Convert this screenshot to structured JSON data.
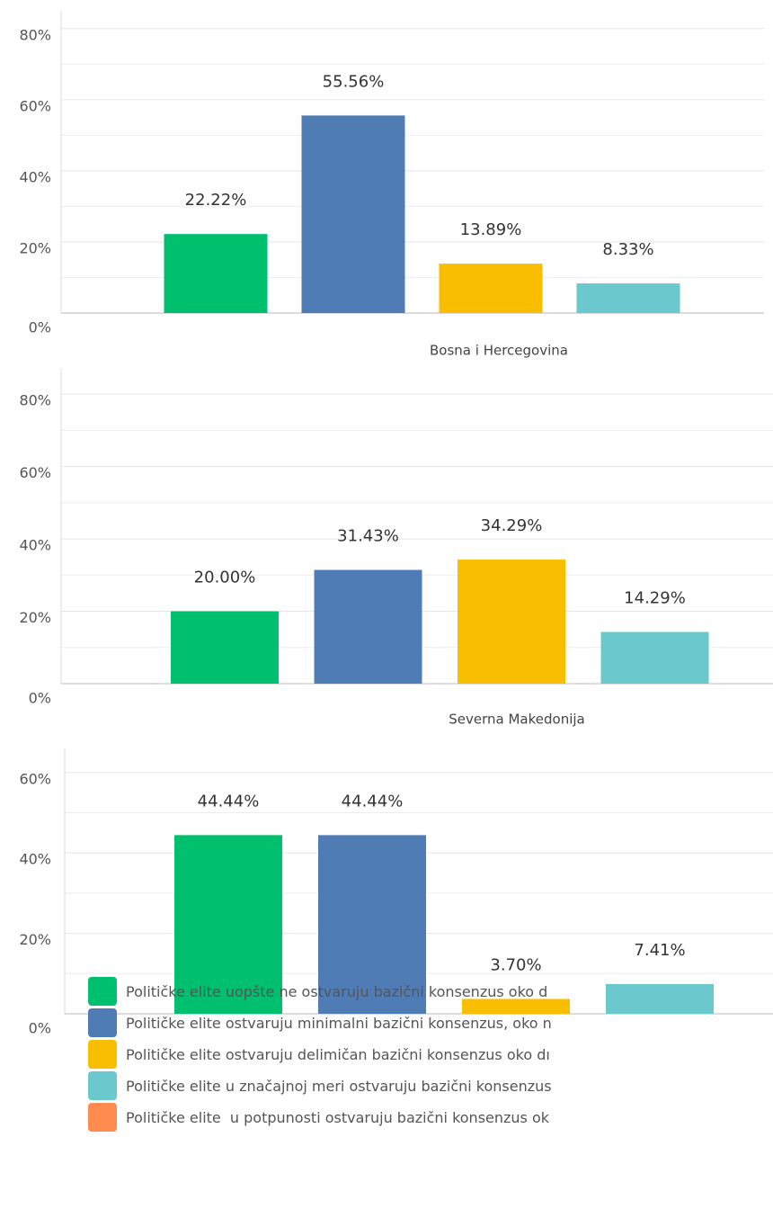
{
  "chart_data": [
    {
      "type": "bar",
      "values": [
        22.22,
        55.56,
        13.89,
        8.33
      ],
      "value_labels": [
        "22.22%",
        "55.56%",
        "13.89%",
        "8.33%"
      ],
      "colors": [
        "#00bf6f",
        "#507cb6",
        "#f9be00",
        "#6bc8cd"
      ],
      "ylim": [
        0,
        85
      ],
      "yticks": [
        {
          "value": 0,
          "label": "0%"
        },
        {
          "value": 20,
          "label": "20%"
        },
        {
          "value": 40,
          "label": "40%"
        },
        {
          "value": 60,
          "label": "60%"
        },
        {
          "value": 80,
          "label": "80%"
        }
      ],
      "minor_yticks": [
        10,
        30,
        50,
        70
      ],
      "grid": true
    },
    {
      "type": "bar",
      "title": "Bosna i Hercegovina",
      "values": [
        20.0,
        31.43,
        34.29,
        14.29
      ],
      "value_labels": [
        "20.00%",
        "31.43%",
        "34.29%",
        "14.29%"
      ],
      "colors": [
        "#00bf6f",
        "#507cb6",
        "#f9be00",
        "#6bc8cd"
      ],
      "ylim": [
        0,
        87
      ],
      "yticks": [
        {
          "value": 0,
          "label": "0%"
        },
        {
          "value": 20,
          "label": "20%"
        },
        {
          "value": 40,
          "label": "40%"
        },
        {
          "value": 60,
          "label": "60%"
        },
        {
          "value": 80,
          "label": "80%"
        }
      ],
      "minor_yticks": [
        10,
        30,
        50,
        70
      ],
      "grid": true
    },
    {
      "type": "bar",
      "title": "Severna Makedonija",
      "values": [
        44.44,
        44.44,
        3.7,
        7.41
      ],
      "value_labels": [
        "44.44%",
        "44.44%",
        "3.70%",
        "7.41%"
      ],
      "colors": [
        "#00bf6f",
        "#507cb6",
        "#f9be00",
        "#6bc8cd"
      ],
      "ylim": [
        0,
        66
      ],
      "yticks": [
        {
          "value": 0,
          "label": "0%"
        },
        {
          "value": 20,
          "label": "20%"
        },
        {
          "value": 40,
          "label": "40%"
        },
        {
          "value": 60,
          "label": "60%"
        }
      ],
      "minor_yticks": [
        10,
        30,
        50
      ],
      "grid": true
    }
  ],
  "legend": [
    {
      "name": "Političke elite uopšte ne ostvaruju bazični konsenzus oko d",
      "color": "#00bf6f"
    },
    {
      "name": "Političke elite ostvaruju minimalni bazični konsenzus, oko n",
      "color": "#507cb6"
    },
    {
      "name": "Političke elite ostvaruju delimičan bazični konsenzus oko dı",
      "color": "#f9be00"
    },
    {
      "name": "Političke elite u značajnoj meri ostvaruju bazični konsenzus",
      "color": "#6bc8cd"
    },
    {
      "name": "Političke elite  u potpunosti ostvaruju bazični konsenzus ok",
      "color": "#ff8b4f"
    }
  ]
}
